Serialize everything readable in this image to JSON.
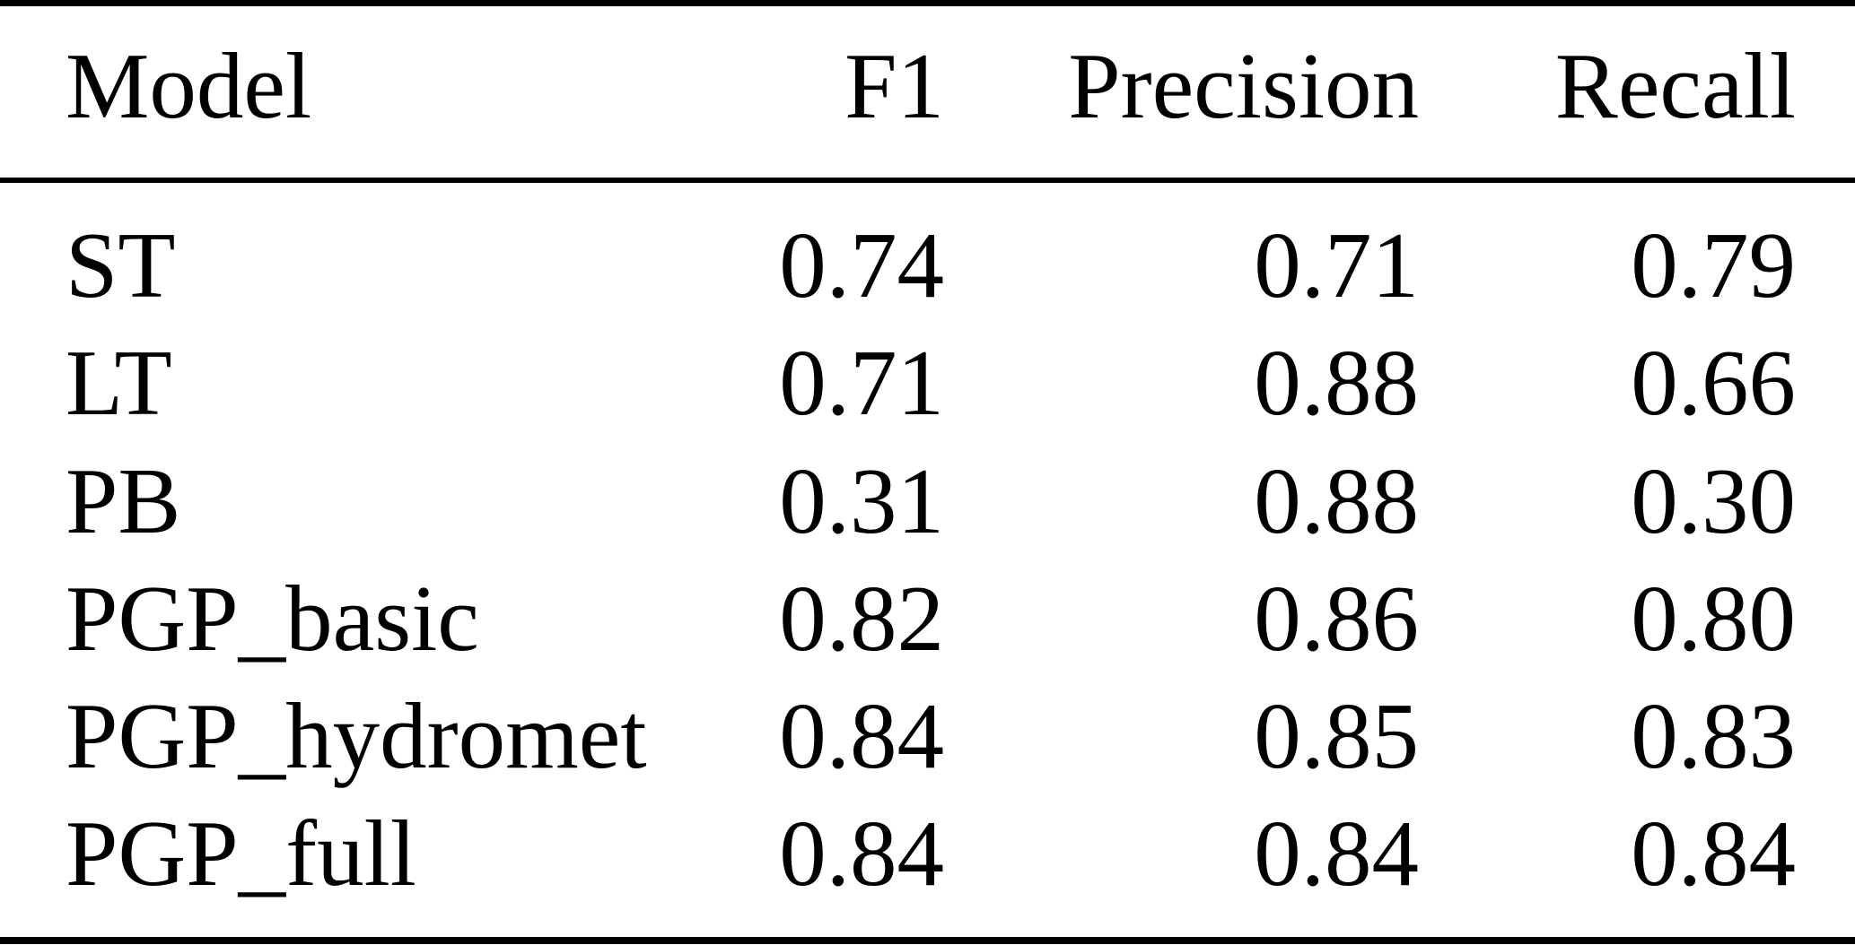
{
  "table": {
    "columns": {
      "model": "Model",
      "f1": "F1",
      "precision": "Precision",
      "recall": "Recall"
    },
    "rows": [
      {
        "model": "ST",
        "f1": "0.74",
        "precision": "0.71",
        "recall": "0.79"
      },
      {
        "model": "LT",
        "f1": "0.71",
        "precision": "0.88",
        "recall": "0.66"
      },
      {
        "model": "PB",
        "f1": "0.31",
        "precision": "0.88",
        "recall": "0.30"
      },
      {
        "model": "PGP_basic",
        "f1": "0.82",
        "precision": "0.86",
        "recall": "0.80"
      },
      {
        "model": "PGP_hydromet",
        "f1": "0.84",
        "precision": "0.85",
        "recall": "0.83"
      },
      {
        "model": "PGP_full",
        "f1": "0.84",
        "precision": "0.84",
        "recall": "0.84"
      }
    ],
    "colors": {
      "text": "#000000",
      "rule": "#000000",
      "background": "#ffffff"
    }
  },
  "chart_data": {
    "type": "table",
    "title": "",
    "columns": [
      "Model",
      "F1",
      "Precision",
      "Recall"
    ],
    "rows": [
      [
        "ST",
        0.74,
        0.71,
        0.79
      ],
      [
        "LT",
        0.71,
        0.88,
        0.66
      ],
      [
        "PB",
        0.31,
        0.88,
        0.3
      ],
      [
        "PGP_basic",
        0.82,
        0.86,
        0.8
      ],
      [
        "PGP_hydromet",
        0.84,
        0.85,
        0.83
      ],
      [
        "PGP_full",
        0.84,
        0.84,
        0.84
      ]
    ]
  }
}
